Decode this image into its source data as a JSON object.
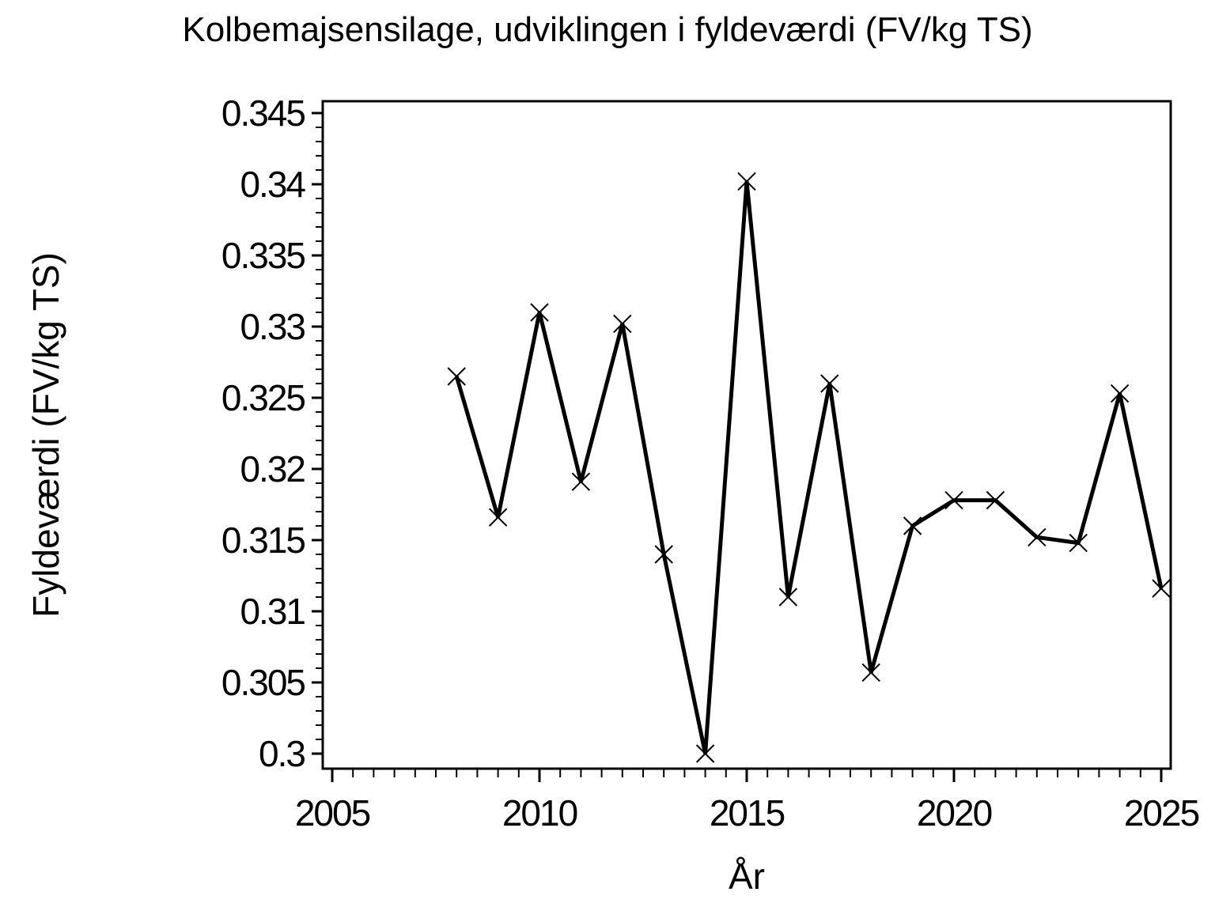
{
  "page": {
    "background_color": "#ffffff",
    "foreground_color": "#000000"
  },
  "chart_data": {
    "type": "line",
    "title": "Kolbemajsensilage,  udviklingen  i  fyldeværdi  (FV/kg TS)",
    "xlabel": "År",
    "ylabel": "Fyldeværdi  (FV/kg TS)",
    "series": [
      {
        "name": "Fyldeværdi",
        "x": [
          2008,
          2009,
          2010,
          2011,
          2012,
          2013,
          2014,
          2015,
          2016,
          2017,
          2018,
          2019,
          2020,
          2021,
          2022,
          2023,
          2024,
          2025
        ],
        "y": [
          0.3265,
          0.3166,
          0.331,
          0.3191,
          0.3302,
          0.314,
          0.3,
          0.3402,
          0.311,
          0.326,
          0.3057,
          0.316,
          0.3178,
          0.3178,
          0.3152,
          0.3148,
          0.3253,
          0.3116
        ]
      }
    ],
    "xlim": [
      2005,
      2025
    ],
    "ylim": [
      0.3,
      0.345
    ],
    "x_major_ticks": [
      2005,
      2010,
      2015,
      2020,
      2025
    ],
    "x_tick_labels": [
      "2005",
      "2010",
      "2015",
      "2020",
      "2025"
    ],
    "x_minor_step": 0.5,
    "y_major_ticks": [
      0.3,
      0.305,
      0.31,
      0.315,
      0.32,
      0.325,
      0.33,
      0.335,
      0.34,
      0.345
    ],
    "y_tick_labels": [
      "0.3",
      "0.305",
      "0.31",
      "0.315",
      "0.32",
      "0.325",
      "0.33",
      "0.335",
      "0.34",
      "0.345"
    ],
    "y_minor_step": 0.001,
    "grid": false,
    "legend": false,
    "line_color": "#000000",
    "marker": "x",
    "frame": true
  }
}
